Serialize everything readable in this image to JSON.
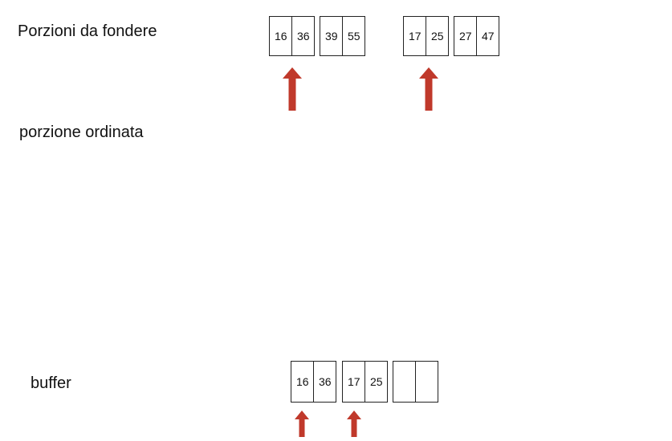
{
  "labels": {
    "runs_to_merge": "Porzioni da fondere",
    "sorted_run": "porzione ordinata",
    "buffer": "buffer"
  },
  "runs": [
    {
      "pages": [
        {
          "values": [
            "16",
            "36"
          ]
        },
        {
          "values": [
            "39",
            "55"
          ]
        }
      ]
    },
    {
      "pages": [
        {
          "values": [
            "17",
            "25"
          ]
        },
        {
          "values": [
            "27",
            "47"
          ]
        }
      ]
    }
  ],
  "buffer": {
    "pages": [
      {
        "values": [
          "16",
          "36"
        ]
      },
      {
        "values": [
          "17",
          "25"
        ]
      },
      {
        "values": [
          "",
          ""
        ]
      }
    ]
  },
  "colors": {
    "arrow": "#c0392b",
    "border": "#222222"
  },
  "icons": {
    "pointer": "up-arrow-icon"
  }
}
